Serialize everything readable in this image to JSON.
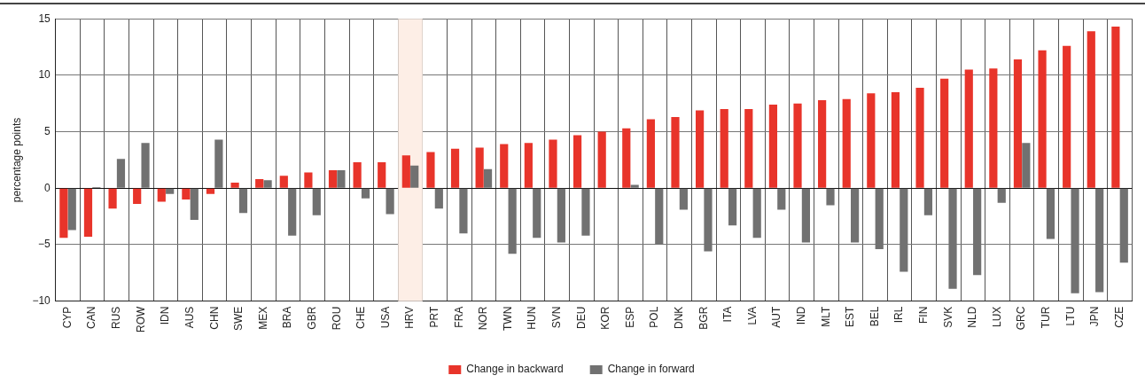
{
  "chart_data": {
    "type": "bar",
    "ylabel": "percentage points",
    "categories": [
      "CYP",
      "CAN",
      "RUS",
      "ROW",
      "IDN",
      "AUS",
      "CHN",
      "SWE",
      "MEX",
      "BRA",
      "GBR",
      "ROU",
      "CHE",
      "USA",
      "HRV",
      "PRT",
      "FRA",
      "NOR",
      "TWN",
      "HUN",
      "SVN",
      "DEU",
      "KOR",
      "ESP",
      "POL",
      "DNK",
      "BGR",
      "ITA",
      "LVA",
      "AUT",
      "IND",
      "MLT",
      "EST",
      "BEL",
      "IRL",
      "FIN",
      "SVK",
      "NLD",
      "LUX",
      "GRC",
      "TUR",
      "LTU",
      "JPN",
      "CZE"
    ],
    "series": [
      {
        "name": "Change in backward",
        "color": "#e8342a",
        "values": [
          -4.4,
          -4.3,
          -1.8,
          -1.4,
          -1.2,
          -1.0,
          -0.5,
          0.5,
          0.8,
          1.1,
          1.4,
          1.6,
          2.3,
          2.3,
          2.9,
          3.2,
          3.5,
          3.6,
          3.9,
          4.0,
          4.3,
          4.7,
          5.0,
          5.3,
          6.1,
          6.3,
          6.9,
          7.0,
          7.0,
          7.4,
          7.5,
          7.8,
          7.9,
          8.4,
          8.5,
          8.9,
          9.7,
          10.5,
          10.6,
          11.4,
          12.2,
          12.6,
          13.9,
          14.3
        ]
      },
      {
        "name": "Change in forward",
        "color": "#717171",
        "values": [
          -3.7,
          0.1,
          2.6,
          4.0,
          -0.5,
          -2.8,
          4.3,
          -2.2,
          0.7,
          -4.2,
          -2.4,
          1.6,
          -0.9,
          -2.3,
          2.0,
          -1.8,
          -4.0,
          1.7,
          -5.8,
          -4.4,
          -4.8,
          -4.2,
          null,
          0.3,
          -5.0,
          -1.9,
          -5.6,
          -3.3,
          -4.4,
          -1.9,
          -4.8,
          -1.5,
          -4.8,
          -5.4,
          -7.4,
          -2.4,
          -8.9,
          -7.7,
          -1.3,
          4.0,
          -4.5,
          -9.3,
          -9.2,
          -6.6
        ]
      }
    ],
    "ylim": [
      -10,
      15
    ],
    "yticks": [
      -10,
      -5,
      0,
      5,
      10,
      15
    ],
    "grid": true,
    "legend": "bottom",
    "bands": [
      {
        "axis": "x",
        "from": "HRV",
        "to": "HRV",
        "color": "#fdeee6"
      }
    ]
  }
}
